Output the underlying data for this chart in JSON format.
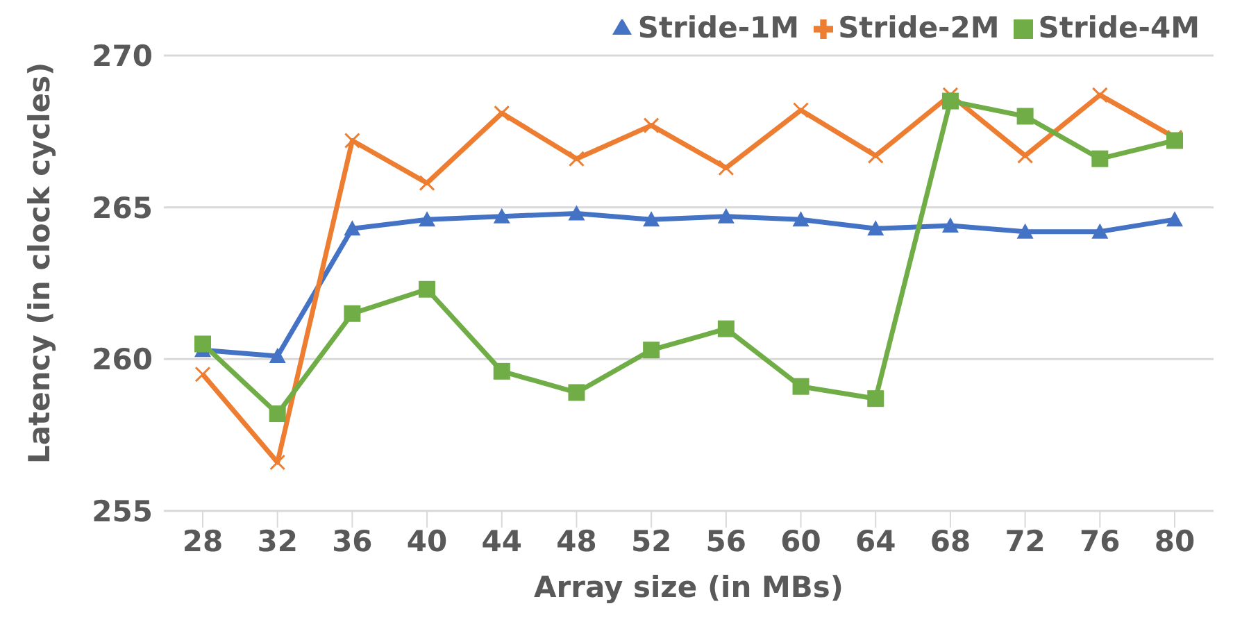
{
  "chart_data": {
    "type": "line",
    "xlabel": "Array size (in MBs)",
    "ylabel": "Latency (in clock cycles)",
    "categories": [
      "28",
      "32",
      "36",
      "40",
      "44",
      "48",
      "52",
      "56",
      "60",
      "64",
      "68",
      "72",
      "76",
      "80"
    ],
    "series": [
      {
        "name": "Stride-1M",
        "color": "#4472c4",
        "marker": "triangle",
        "values": [
          260.3,
          260.1,
          264.3,
          264.6,
          264.7,
          264.8,
          264.6,
          264.7,
          264.6,
          264.3,
          264.4,
          264.2,
          264.2,
          264.6
        ]
      },
      {
        "name": "Stride-2M",
        "color": "#ed7d31",
        "marker": "cross",
        "values": [
          259.5,
          256.6,
          267.2,
          265.8,
          268.1,
          266.6,
          267.7,
          266.3,
          268.2,
          266.7,
          268.7,
          266.7,
          268.7,
          267.3
        ]
      },
      {
        "name": "Stride-4M",
        "color": "#70ad47",
        "marker": "square",
        "values": [
          260.5,
          258.2,
          261.5,
          262.3,
          259.6,
          258.9,
          260.3,
          261.0,
          259.1,
          258.7,
          268.5,
          268.0,
          266.6,
          267.2
        ]
      }
    ],
    "ylim": [
      255,
      270
    ],
    "yticks": [
      255,
      260,
      265,
      270
    ],
    "grid": "y",
    "legend": "top right"
  }
}
